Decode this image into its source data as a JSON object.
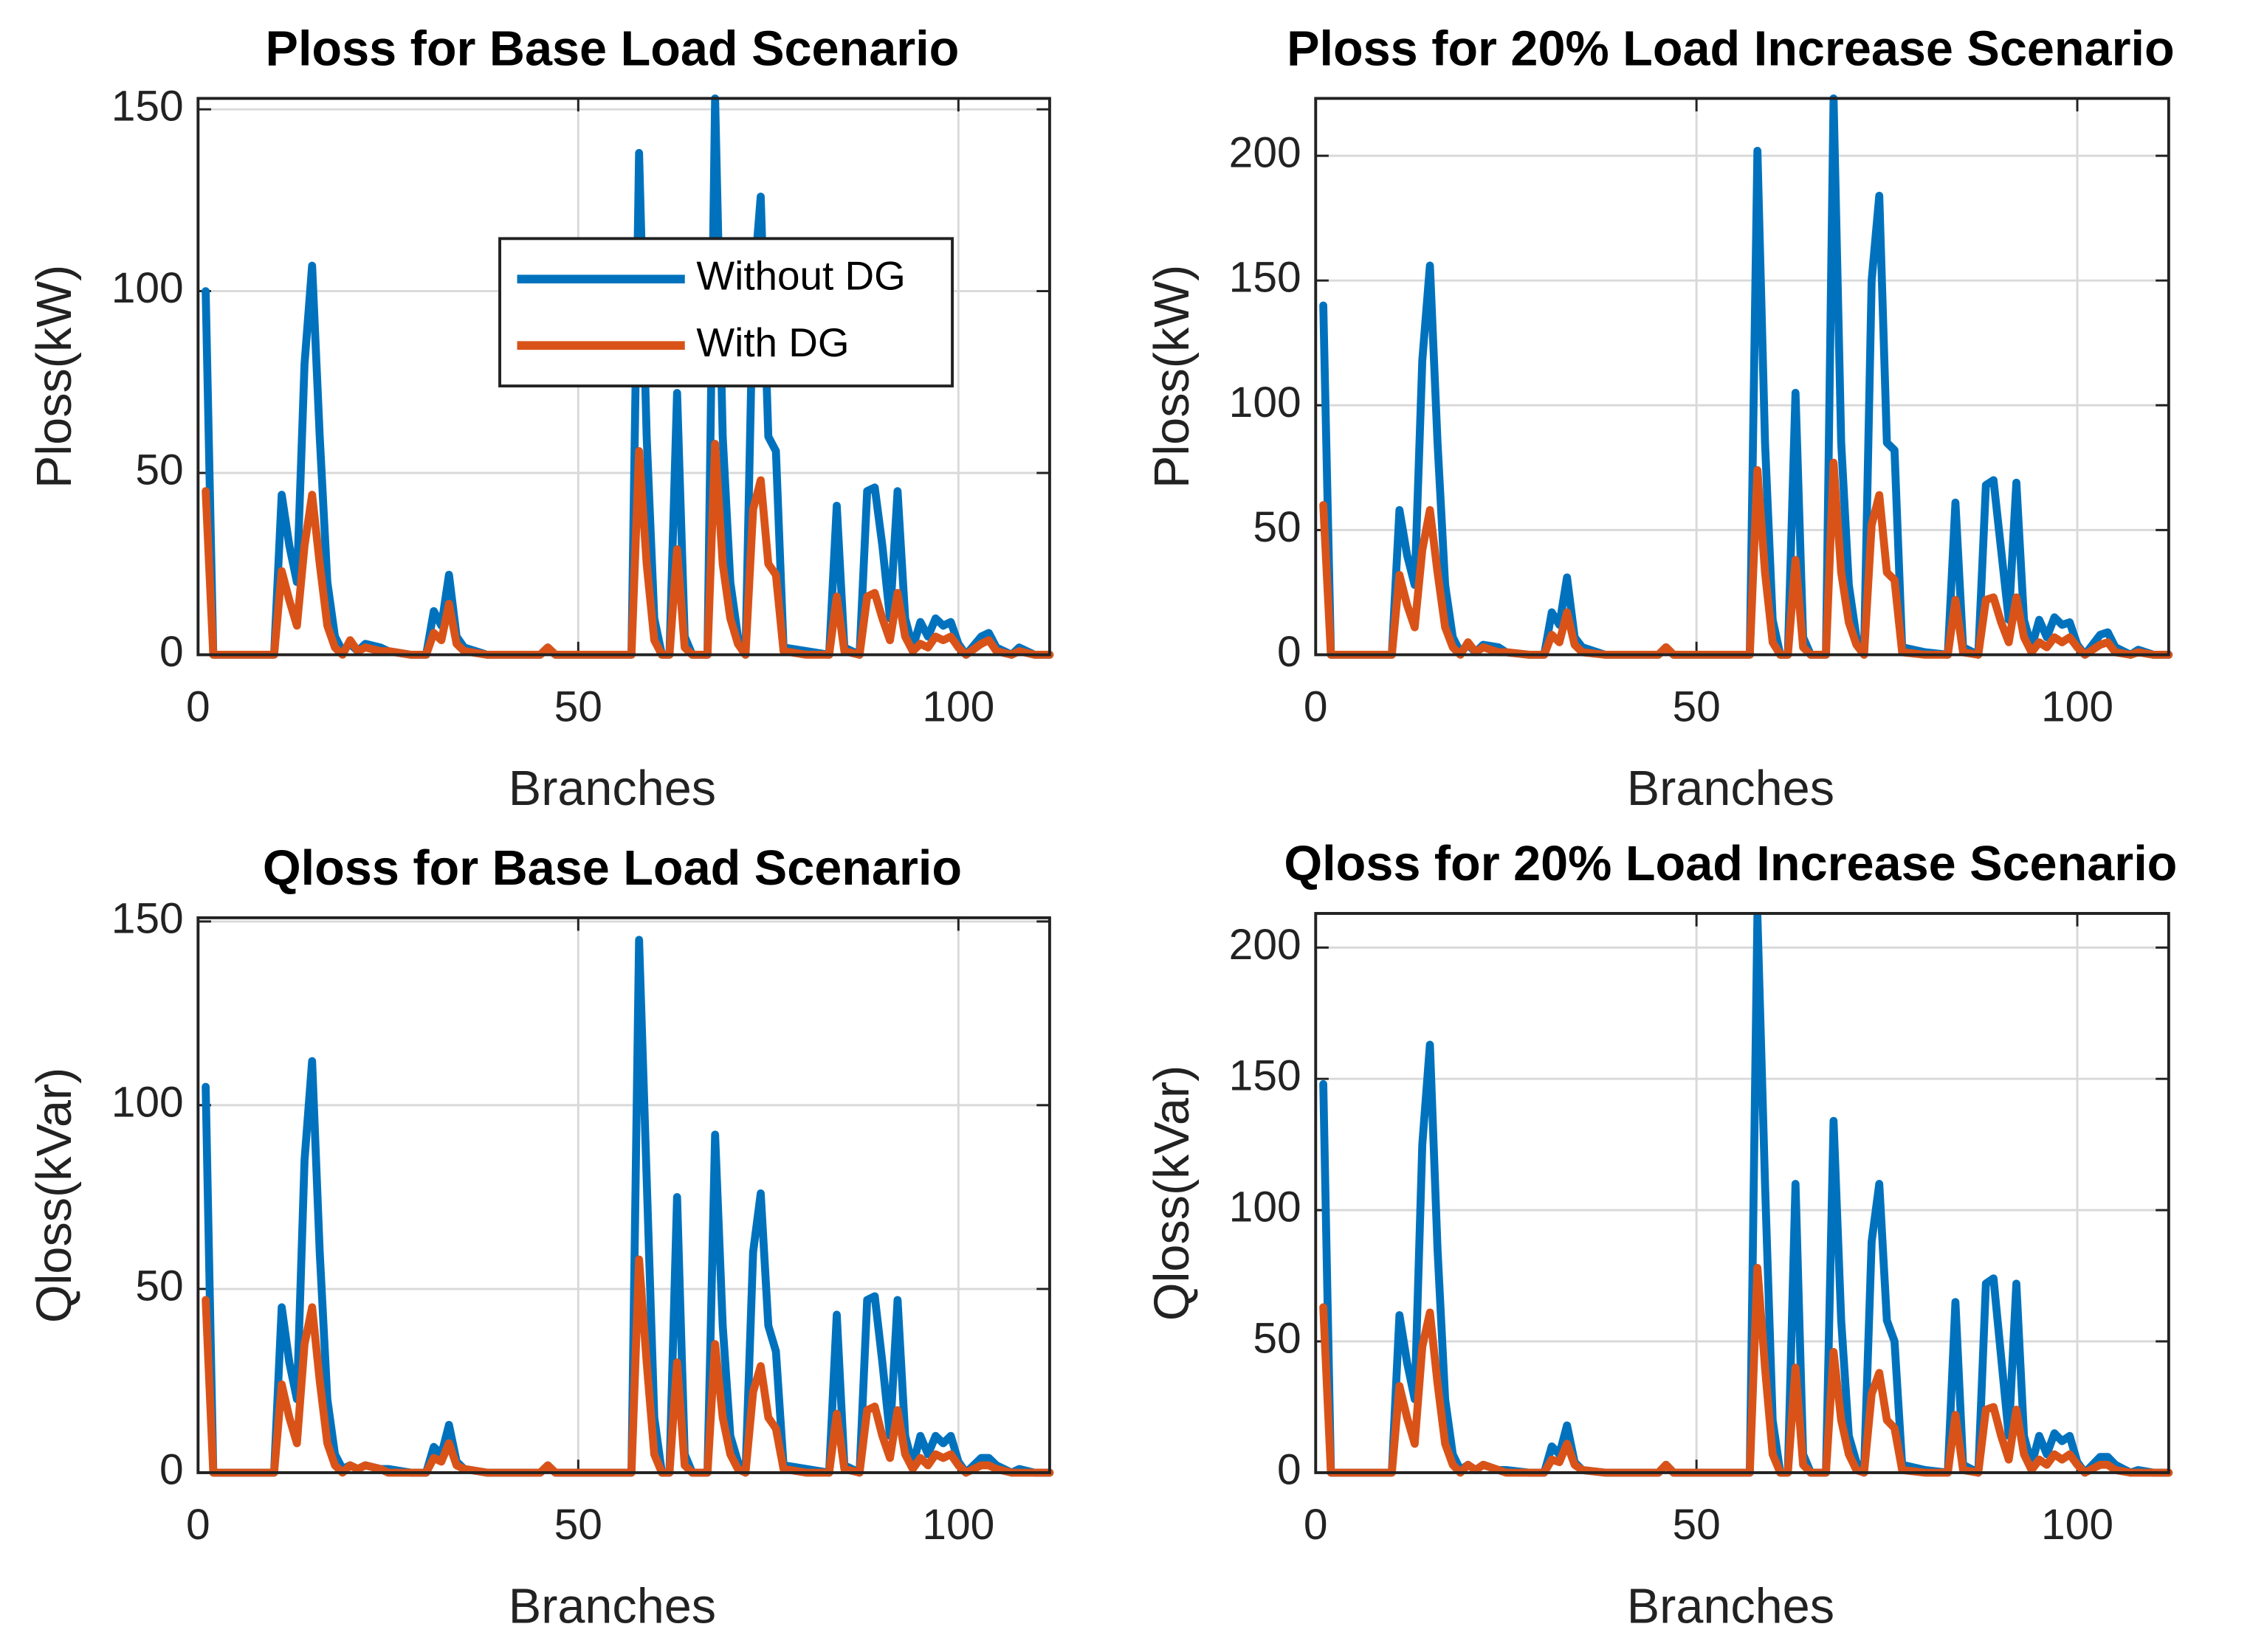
{
  "chart_data": [
    {
      "type": "line",
      "title": "Ploss for Base Load Scenario",
      "x_label": "Branches",
      "y_label": "Ploss(kW)",
      "xlim": [
        0,
        112
      ],
      "xticks": [
        0,
        50,
        100
      ],
      "ylim": [
        0,
        153
      ],
      "yticks": [
        0,
        50,
        100,
        150
      ],
      "grid": true,
      "legend": "north",
      "x": [
        1,
        2,
        10,
        11,
        12,
        13,
        14,
        15,
        16,
        17,
        18,
        19,
        20,
        21,
        22,
        24,
        25,
        28,
        30,
        31,
        32,
        33,
        34,
        35,
        38,
        45,
        46,
        47,
        55,
        57,
        58,
        59,
        60,
        61,
        62,
        63,
        64,
        65,
        67,
        68,
        69,
        70,
        71,
        72,
        73,
        74,
        75,
        76,
        77,
        80,
        83,
        84,
        85,
        87,
        88,
        89,
        90,
        91,
        92,
        93,
        94,
        95,
        96,
        97,
        98,
        99,
        100,
        101,
        103,
        104,
        105,
        107,
        108,
        110,
        112
      ],
      "series": [
        {
          "name": "Without DG",
          "color": "#0072BD",
          "values": [
            100,
            0,
            0,
            44,
            30,
            20,
            80,
            107,
            60,
            20,
            5,
            1,
            3,
            1,
            3,
            2,
            1,
            0,
            0,
            12,
            8,
            22,
            5,
            2,
            0,
            0,
            2,
            0,
            0,
            0,
            138,
            60,
            10,
            0,
            0,
            72,
            5,
            0,
            0,
            153,
            60,
            20,
            5,
            0,
            100,
            126,
            60,
            56,
            2,
            1,
            0,
            41,
            2,
            0,
            45,
            46,
            30,
            10,
            45,
            10,
            2,
            9,
            5,
            10,
            8,
            9,
            3,
            0,
            5,
            6,
            2,
            0,
            2,
            0,
            0
          ]
        },
        {
          "name": "With DG",
          "color": "#D95319",
          "values": [
            45,
            0,
            0,
            23,
            15,
            8,
            30,
            44,
            25,
            8,
            2,
            0,
            4,
            1,
            2,
            1,
            1,
            0,
            0,
            6,
            4,
            14,
            3,
            1,
            0,
            0,
            2,
            0,
            0,
            0,
            56,
            25,
            4,
            0,
            0,
            29,
            2,
            0,
            0,
            58,
            25,
            10,
            3,
            0,
            40,
            48,
            25,
            22,
            1,
            0,
            0,
            16,
            1,
            0,
            16,
            17,
            10,
            4,
            17,
            5,
            1,
            3,
            2,
            5,
            4,
            5,
            2,
            0,
            3,
            4,
            1,
            0,
            1,
            0,
            0
          ]
        }
      ]
    },
    {
      "type": "line",
      "title": "Ploss for 20% Load Increase Scenario",
      "x_label": "Branches",
      "y_label": "Ploss(kW)",
      "xlim": [
        0,
        112
      ],
      "xticks": [
        0,
        50,
        100
      ],
      "ylim": [
        0,
        223
      ],
      "yticks": [
        0,
        50,
        100,
        150,
        200
      ],
      "grid": true,
      "x": [
        1,
        2,
        10,
        11,
        12,
        13,
        14,
        15,
        16,
        17,
        18,
        19,
        20,
        21,
        22,
        24,
        25,
        28,
        30,
        31,
        32,
        33,
        34,
        35,
        38,
        45,
        46,
        47,
        55,
        57,
        58,
        59,
        60,
        61,
        62,
        63,
        64,
        65,
        67,
        68,
        69,
        70,
        71,
        72,
        73,
        74,
        75,
        76,
        77,
        80,
        83,
        84,
        85,
        87,
        88,
        89,
        90,
        91,
        92,
        93,
        94,
        95,
        96,
        97,
        98,
        99,
        100,
        101,
        103,
        104,
        105,
        107,
        108,
        110,
        112
      ],
      "series": [
        {
          "name": "Without DG",
          "color": "#0072BD",
          "values": [
            140,
            0,
            0,
            58,
            40,
            28,
            118,
            156,
            85,
            28,
            7,
            1,
            4,
            1,
            4,
            3,
            1,
            0,
            0,
            17,
            12,
            31,
            7,
            3,
            0,
            0,
            3,
            0,
            0,
            0,
            202,
            85,
            14,
            0,
            0,
            105,
            7,
            0,
            0,
            223,
            85,
            28,
            7,
            0,
            150,
            184,
            85,
            82,
            3,
            1,
            0,
            61,
            3,
            0,
            68,
            70,
            42,
            14,
            69,
            14,
            3,
            14,
            7,
            15,
            12,
            13,
            4,
            0,
            8,
            9,
            3,
            0,
            2,
            0,
            0
          ]
        },
        {
          "name": "With DG",
          "color": "#D95319",
          "values": [
            60,
            0,
            0,
            32,
            20,
            11,
            42,
            58,
            33,
            11,
            3,
            0,
            5,
            1,
            3,
            1,
            1,
            0,
            0,
            8,
            5,
            17,
            4,
            1,
            0,
            0,
            3,
            0,
            0,
            0,
            74,
            33,
            5,
            0,
            0,
            38,
            3,
            0,
            0,
            77,
            33,
            13,
            4,
            0,
            52,
            64,
            33,
            30,
            1,
            0,
            0,
            22,
            1,
            0,
            22,
            23,
            13,
            5,
            23,
            7,
            1,
            5,
            3,
            7,
            5,
            7,
            3,
            0,
            4,
            5,
            1,
            0,
            1,
            0,
            0
          ]
        }
      ]
    },
    {
      "type": "line",
      "title": "Qloss for Base Load Scenario",
      "x_label": "Branches",
      "y_label": "Qloss(kVar)",
      "xlim": [
        0,
        112
      ],
      "xticks": [
        0,
        50,
        100
      ],
      "ylim": [
        0,
        151
      ],
      "yticks": [
        0,
        50,
        100,
        150
      ],
      "grid": true,
      "x": [
        1,
        2,
        10,
        11,
        12,
        13,
        14,
        15,
        16,
        17,
        18,
        19,
        20,
        21,
        22,
        24,
        25,
        28,
        30,
        31,
        32,
        33,
        34,
        35,
        38,
        45,
        46,
        47,
        55,
        57,
        58,
        59,
        60,
        61,
        62,
        63,
        64,
        65,
        67,
        68,
        69,
        70,
        71,
        72,
        73,
        74,
        75,
        76,
        77,
        80,
        83,
        84,
        85,
        87,
        88,
        89,
        90,
        91,
        92,
        93,
        94,
        95,
        96,
        97,
        98,
        99,
        100,
        101,
        103,
        104,
        105,
        107,
        108,
        110,
        112
      ],
      "series": [
        {
          "name": "Without DG",
          "color": "#0072BD",
          "values": [
            105,
            0,
            0,
            45,
            30,
            20,
            85,
            112,
            60,
            20,
            5,
            1,
            2,
            1,
            2,
            1,
            1,
            0,
            0,
            7,
            5,
            13,
            3,
            1,
            0,
            0,
            2,
            0,
            0,
            0,
            145,
            80,
            15,
            0,
            0,
            75,
            5,
            0,
            0,
            92,
            40,
            10,
            3,
            0,
            60,
            76,
            40,
            33,
            2,
            1,
            0,
            43,
            2,
            0,
            47,
            48,
            30,
            10,
            47,
            10,
            2,
            10,
            5,
            10,
            8,
            10,
            3,
            0,
            4,
            4,
            2,
            0,
            1,
            0,
            0
          ]
        },
        {
          "name": "With DG",
          "color": "#D95319",
          "values": [
            47,
            0,
            0,
            24,
            15,
            8,
            35,
            45,
            25,
            8,
            2,
            0,
            2,
            1,
            2,
            1,
            0,
            0,
            0,
            4,
            3,
            8,
            2,
            1,
            0,
            0,
            2,
            0,
            0,
            0,
            58,
            30,
            5,
            0,
            0,
            30,
            2,
            0,
            0,
            35,
            15,
            5,
            1,
            0,
            22,
            29,
            15,
            12,
            1,
            0,
            0,
            16,
            1,
            0,
            17,
            18,
            10,
            4,
            17,
            5,
            1,
            4,
            2,
            5,
            4,
            5,
            2,
            0,
            2,
            2,
            1,
            0,
            0,
            0,
            0
          ]
        }
      ]
    },
    {
      "type": "line",
      "title": "Qloss for 20% Load Increase Scenario",
      "x_label": "Branches",
      "y_label": "Qloss(kVar)",
      "xlim": [
        0,
        112
      ],
      "xticks": [
        0,
        50,
        100
      ],
      "ylim": [
        0,
        213
      ],
      "yticks": [
        0,
        50,
        100,
        150,
        200
      ],
      "grid": true,
      "x": [
        1,
        2,
        10,
        11,
        12,
        13,
        14,
        15,
        16,
        17,
        18,
        19,
        20,
        21,
        22,
        24,
        25,
        28,
        30,
        31,
        32,
        33,
        34,
        35,
        38,
        45,
        46,
        47,
        55,
        57,
        58,
        59,
        60,
        61,
        62,
        63,
        64,
        65,
        67,
        68,
        69,
        70,
        71,
        72,
        73,
        74,
        75,
        76,
        77,
        80,
        83,
        84,
        85,
        87,
        88,
        89,
        90,
        91,
        92,
        93,
        94,
        95,
        96,
        97,
        98,
        99,
        100,
        101,
        103,
        104,
        105,
        107,
        108,
        110,
        112
      ],
      "series": [
        {
          "name": "Without DG",
          "color": "#0072BD",
          "values": [
            148,
            0,
            0,
            60,
            42,
            28,
            125,
            163,
            85,
            28,
            7,
            1,
            3,
            1,
            3,
            1,
            1,
            0,
            0,
            10,
            7,
            18,
            4,
            1,
            0,
            0,
            3,
            0,
            0,
            0,
            212,
            110,
            20,
            0,
            0,
            110,
            7,
            0,
            0,
            134,
            58,
            14,
            4,
            0,
            88,
            110,
            58,
            50,
            3,
            1,
            0,
            65,
            3,
            0,
            72,
            74,
            44,
            14,
            72,
            14,
            3,
            14,
            7,
            15,
            12,
            14,
            4,
            0,
            6,
            6,
            3,
            0,
            1,
            0,
            0
          ]
        },
        {
          "name": "With DG",
          "color": "#D95319",
          "values": [
            63,
            0,
            0,
            33,
            21,
            11,
            48,
            61,
            34,
            11,
            3,
            0,
            3,
            1,
            3,
            1,
            0,
            0,
            0,
            5,
            4,
            11,
            3,
            1,
            0,
            0,
            3,
            0,
            0,
            0,
            78,
            40,
            7,
            0,
            0,
            40,
            3,
            0,
            0,
            46,
            20,
            7,
            1,
            0,
            30,
            38,
            20,
            17,
            1,
            0,
            0,
            22,
            1,
            0,
            24,
            25,
            14,
            5,
            24,
            7,
            1,
            5,
            3,
            7,
            5,
            7,
            3,
            0,
            3,
            3,
            1,
            0,
            0,
            0,
            0
          ]
        }
      ]
    }
  ]
}
